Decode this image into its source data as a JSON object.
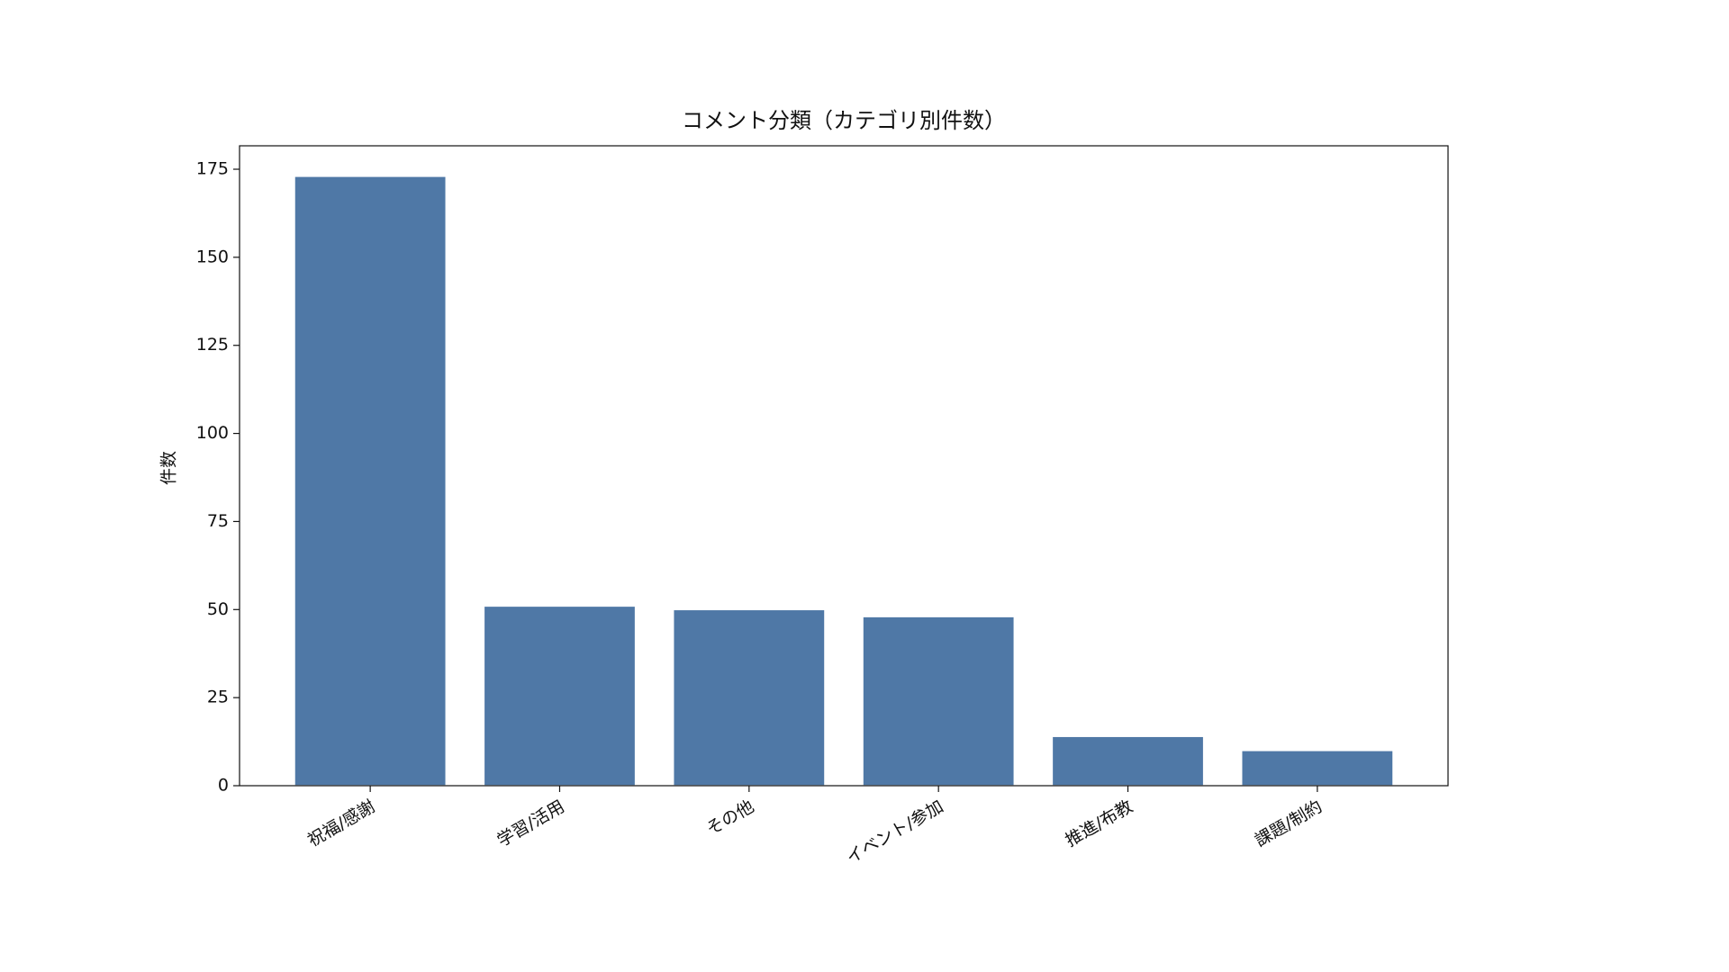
{
  "chart_data": {
    "type": "bar",
    "title": "コメント分類（カテゴリ別件数）",
    "y_label": "件数",
    "categories": [
      "祝福/感謝",
      "学習/活用",
      "その他",
      "イベント/参加",
      "推進/布教",
      "課題/制約"
    ],
    "values": [
      173,
      51,
      50,
      48,
      14,
      10
    ],
    "color": "#4f78a6",
    "ylim": [
      0,
      181.65
    ],
    "yticks": [
      0,
      25,
      50,
      75,
      100,
      125,
      150,
      175
    ],
    "grid": false
  }
}
